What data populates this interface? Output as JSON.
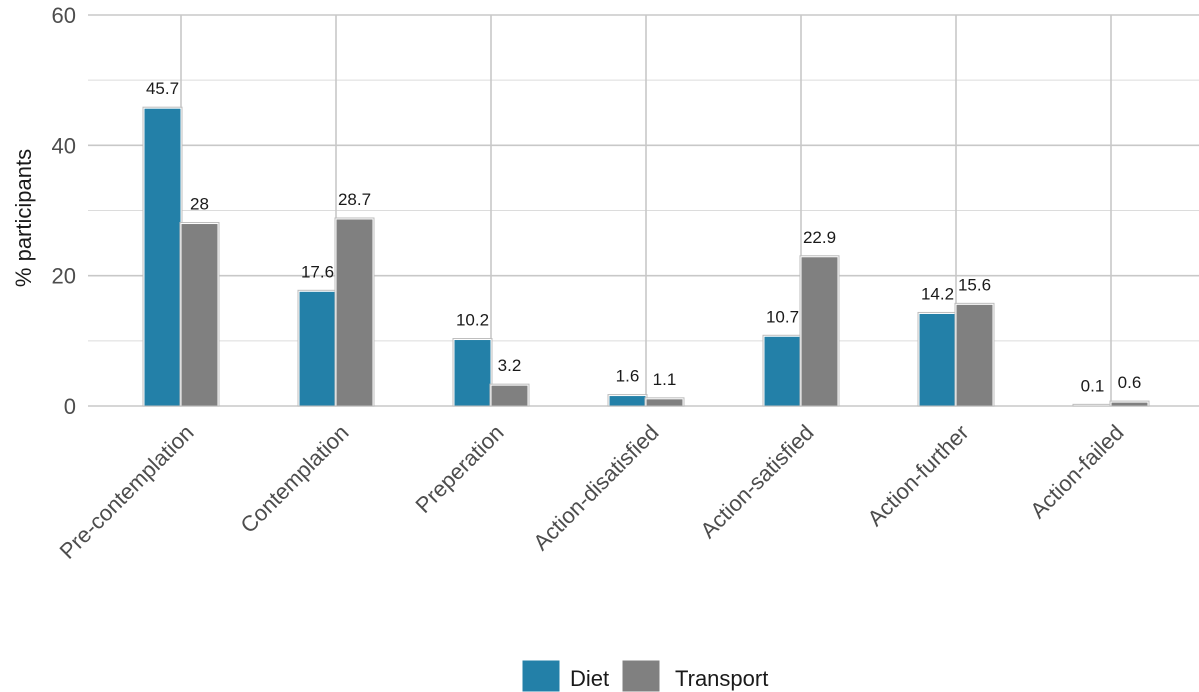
{
  "chart_data": {
    "type": "bar",
    "categories": [
      "Pre-contemplation",
      "Contemplation",
      "Preperation",
      "Action-disatisfied",
      "Action-satisfied",
      "Action-further",
      "Action-failed"
    ],
    "series": [
      {
        "name": "Diet",
        "color": "#2380a8",
        "values": [
          45.7,
          17.6,
          10.2,
          1.6,
          10.7,
          14.2,
          0.1
        ],
        "labels": [
          "45.7",
          "17.6",
          "10.2",
          "1.6",
          "10.7",
          "14.2",
          "0.1"
        ]
      },
      {
        "name": "Transport",
        "color": "#808080",
        "values": [
          28,
          28.7,
          3.2,
          1.1,
          22.9,
          15.6,
          0.6
        ],
        "labels": [
          "28",
          "28.7",
          "3.2",
          "1.1",
          "22.9",
          "15.6",
          "0.6"
        ]
      }
    ],
    "title": "",
    "xlabel": "",
    "ylabel": "% participants",
    "ylim": [
      0,
      60
    ],
    "yticks": [
      "0",
      "20",
      "40",
      "60"
    ],
    "grid": true,
    "legend_position": "bottom"
  }
}
